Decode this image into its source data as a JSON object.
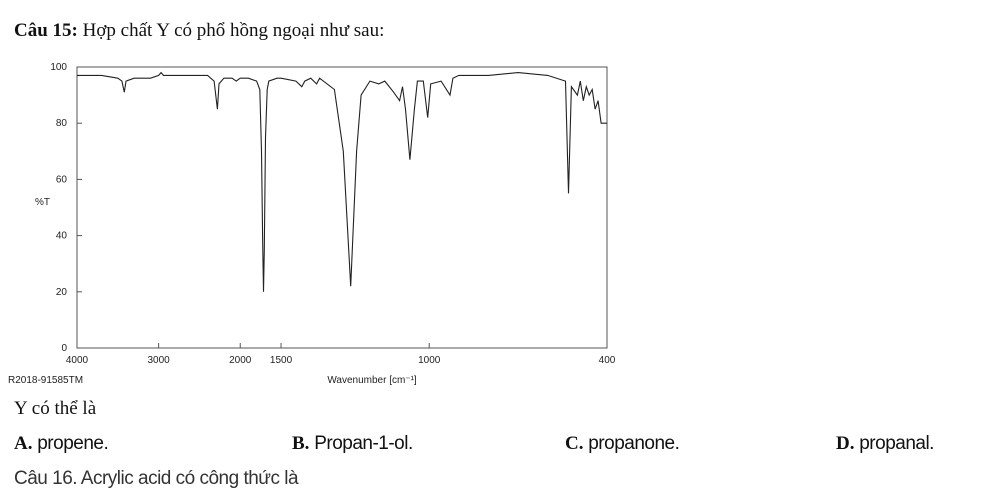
{
  "question": {
    "number": "Câu 15:",
    "text": "Hợp chất Y có phổ hồng ngoại như sau:",
    "prompt": "Y có thể là"
  },
  "chart_data": {
    "type": "line",
    "ylabel": "%T",
    "xlabel": "Wavenumber [cm⁻¹]",
    "note": "R2018-91585TM",
    "color": "#222222",
    "xlim": [
      4000,
      400
    ],
    "ylim": [
      0,
      100
    ],
    "xticks": [
      4000,
      3000,
      2000,
      1500,
      1000,
      400
    ],
    "yticks": [
      0,
      20,
      40,
      60,
      80,
      100
    ],
    "x": [
      4000,
      3900,
      3700,
      3500,
      3450,
      3420,
      3400,
      3300,
      3100,
      3000,
      2970,
      2940,
      2900,
      2700,
      2400,
      2320,
      2280,
      2260,
      2200,
      2100,
      2050,
      2000,
      1900,
      1800,
      1760,
      1740,
      1725,
      1715,
      1705,
      1690,
      1670,
      1650,
      1550,
      1500,
      1450,
      1430,
      1420,
      1400,
      1380,
      1370,
      1320,
      1290,
      1265,
      1245,
      1230,
      1200,
      1170,
      1150,
      1120,
      1100,
      1090,
      1080,
      1065,
      1050,
      1040,
      1020,
      1005,
      995,
      960,
      930,
      920,
      900,
      800,
      700,
      600,
      540,
      530,
      520,
      500,
      490,
      480,
      470,
      460,
      450,
      440,
      430,
      420,
      400
    ],
    "values": [
      97,
      97,
      97,
      96,
      95,
      91,
      95,
      96,
      96,
      97,
      98,
      97,
      97,
      97,
      97,
      95,
      85,
      94,
      96,
      96,
      95,
      96,
      96,
      95,
      92,
      70,
      37,
      20,
      35,
      75,
      92,
      95,
      96,
      96,
      95,
      93,
      95,
      96,
      94,
      96,
      92,
      70,
      22,
      70,
      90,
      95,
      94,
      95,
      91,
      88,
      93,
      85,
      67,
      85,
      95,
      95,
      82,
      94,
      95,
      90,
      96,
      97,
      97,
      98,
      97,
      95,
      55,
      93,
      90,
      95,
      88,
      93,
      90,
      92,
      85,
      88,
      80,
      80
    ]
  },
  "answers": [
    {
      "letter": "A.",
      "text": "propene."
    },
    {
      "letter": "B.",
      "text": "Propan-1-ol."
    },
    {
      "letter": "C.",
      "text": "propanone."
    },
    {
      "letter": "D.",
      "text": "propanal."
    }
  ],
  "next_question": "Câu 16. Acrylic acid có công thức là"
}
